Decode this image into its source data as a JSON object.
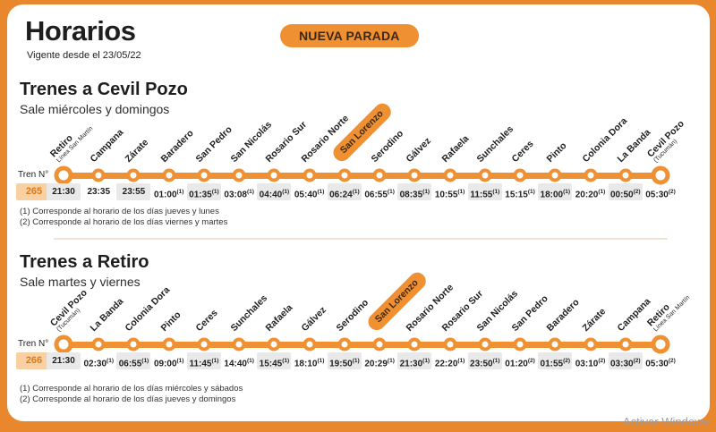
{
  "header": {
    "title": "Horarios",
    "subtitle": "Vigente desde el 23/05/22",
    "badge": "NUEVA PARADA"
  },
  "sections": [
    {
      "title": "Trenes a Cevil Pozo",
      "subtitle": "Sale miércoles y domingos",
      "train_label": "Tren N°",
      "train_number": "265",
      "stations": [
        {
          "name": "Retiro",
          "sub": "Línea San Martín",
          "terminal": true
        },
        {
          "name": "Campana"
        },
        {
          "name": "Zárate"
        },
        {
          "name": "Baradero"
        },
        {
          "name": "San Pedro"
        },
        {
          "name": "San Nicolás"
        },
        {
          "name": "Rosario Sur"
        },
        {
          "name": "Rosario Norte"
        },
        {
          "name": "San Lorenzo",
          "highlight": true
        },
        {
          "name": "Serodino"
        },
        {
          "name": "Gálvez"
        },
        {
          "name": "Rafaela"
        },
        {
          "name": "Sunchales"
        },
        {
          "name": "Ceres"
        },
        {
          "name": "Pinto"
        },
        {
          "name": "Colonia Dora"
        },
        {
          "name": "La Banda"
        },
        {
          "name": "Cevil Pozo",
          "sub": "(Tucumán)",
          "terminal": true
        }
      ],
      "times": [
        {
          "t": "21:30"
        },
        {
          "t": "23:35"
        },
        {
          "t": "23:55"
        },
        {
          "t": "01:00",
          "fn": "1"
        },
        {
          "t": "01:35",
          "fn": "1"
        },
        {
          "t": "03:08",
          "fn": "1"
        },
        {
          "t": "04:40",
          "fn": "1"
        },
        {
          "t": "05:40",
          "fn": "1"
        },
        {
          "t": "06:24",
          "fn": "1"
        },
        {
          "t": "06:55",
          "fn": "1"
        },
        {
          "t": "08:35",
          "fn": "1"
        },
        {
          "t": "10:55",
          "fn": "1"
        },
        {
          "t": "11:55",
          "fn": "1"
        },
        {
          "t": "15:15",
          "fn": "1"
        },
        {
          "t": "18:00",
          "fn": "1"
        },
        {
          "t": "20:20",
          "fn": "1"
        },
        {
          "t": "00:50",
          "fn": "2"
        },
        {
          "t": "05:30",
          "fn": "2"
        }
      ],
      "footnotes": [
        "(1) Corresponde al horario de los días jueves y lunes",
        "(2) Corresponde al horario de los días viernes y martes"
      ]
    },
    {
      "title": "Trenes a Retiro",
      "subtitle": "Sale martes y viernes",
      "train_label": "Tren N°",
      "train_number": "266",
      "stations": [
        {
          "name": "Cevil Pozo",
          "sub": "(Tucumán)",
          "terminal": true
        },
        {
          "name": "La Banda"
        },
        {
          "name": "Colonia Dora"
        },
        {
          "name": "Pinto"
        },
        {
          "name": "Ceres"
        },
        {
          "name": "Sunchales"
        },
        {
          "name": "Rafaela"
        },
        {
          "name": "Gálvez"
        },
        {
          "name": "Serodino"
        },
        {
          "name": "San Lorenzo",
          "highlight": true
        },
        {
          "name": "Rosario Norte"
        },
        {
          "name": "Rosario Sur"
        },
        {
          "name": "San Nicolás"
        },
        {
          "name": "San Pedro"
        },
        {
          "name": "Baradero"
        },
        {
          "name": "Zárate"
        },
        {
          "name": "Campana"
        },
        {
          "name": "Retiro",
          "sub": "Línea San Martín",
          "terminal": true
        }
      ],
      "times": [
        {
          "t": "21:30"
        },
        {
          "t": "02:30",
          "fn": "1"
        },
        {
          "t": "06:55",
          "fn": "1"
        },
        {
          "t": "09:00",
          "fn": "1"
        },
        {
          "t": "11:45",
          "fn": "1"
        },
        {
          "t": "14:40",
          "fn": "1"
        },
        {
          "t": "15:45",
          "fn": "1"
        },
        {
          "t": "18:10",
          "fn": "1"
        },
        {
          "t": "19:50",
          "fn": "1"
        },
        {
          "t": "20:29",
          "fn": "1"
        },
        {
          "t": "21:30",
          "fn": "1"
        },
        {
          "t": "22:20",
          "fn": "1"
        },
        {
          "t": "23:50",
          "fn": "1"
        },
        {
          "t": "01:20",
          "fn": "2"
        },
        {
          "t": "01:55",
          "fn": "2"
        },
        {
          "t": "03:10",
          "fn": "2"
        },
        {
          "t": "03:30",
          "fn": "2"
        },
        {
          "t": "05:30",
          "fn": "2"
        }
      ],
      "footnotes": [
        "(1) Corresponde al horario de los días miércoles y sábados",
        "(2) Corresponde al horario de los días jueves y domingos"
      ]
    }
  ],
  "watermark": "Activar Windows",
  "colors": {
    "accent": "#ef9133",
    "frame": "#e8872c",
    "ink": "#1e1e1e",
    "badge_text": "#40270f",
    "train_bg": "#f8d0a2",
    "train_text": "#da7a1c",
    "shade": "#e9e9e9",
    "divider": "#f0e3d3",
    "watermark": "#a09a9b"
  }
}
